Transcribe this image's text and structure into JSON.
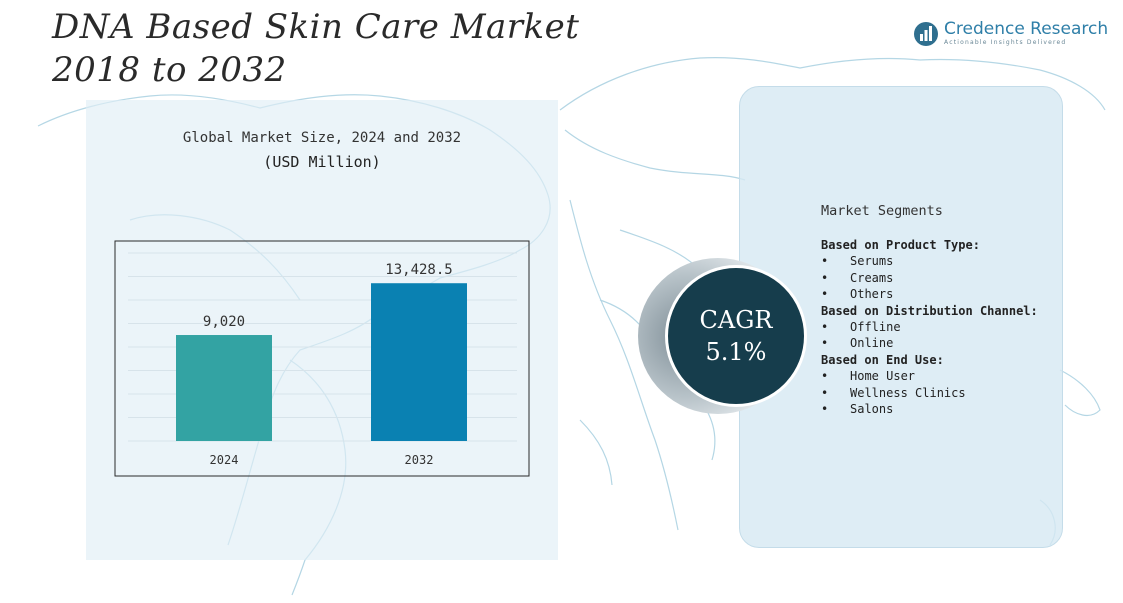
{
  "header": {
    "title_line1": "DNA Based Skin Care Market",
    "title_line2": "2018 to 2032"
  },
  "logo": {
    "name": "Credence Research",
    "tagline": "Actionable Insights Delivered",
    "icon": "credence-logo-icon"
  },
  "chart": {
    "title": "Global Market Size, 2024 and 2032",
    "subtitle": "(USD Million)"
  },
  "chart_data": {
    "type": "bar",
    "title": "Global Market Size, 2024 and 2032",
    "subtitle": "(USD Million)",
    "categories": [
      "2024",
      "2032"
    ],
    "values": [
      9020,
      13428.5
    ],
    "value_labels": [
      "9,020",
      "13,428.5"
    ],
    "colors": [
      "#33a3a3",
      "#0a81b2"
    ],
    "ylim": [
      0,
      16000
    ],
    "grid": true,
    "legend": "none"
  },
  "cagr": {
    "label": "CAGR",
    "value": "5.1%"
  },
  "segments": {
    "header": "Market Segments",
    "groups": [
      {
        "title": "Based on Product Type:",
        "items": [
          "Serums",
          "Creams",
          "Others"
        ]
      },
      {
        "title": "Based on Distribution Channel:",
        "items": [
          "Offline",
          "Online"
        ]
      },
      {
        "title": "Based on End Use:",
        "items": [
          "Home User",
          "Wellness Clinics",
          "Salons"
        ]
      }
    ]
  },
  "colors": {
    "panel": "#e1eef6",
    "cagr_circle": "#163d4c",
    "brand": "#2f7fa8",
    "map_outline": "#9cc9dc"
  }
}
